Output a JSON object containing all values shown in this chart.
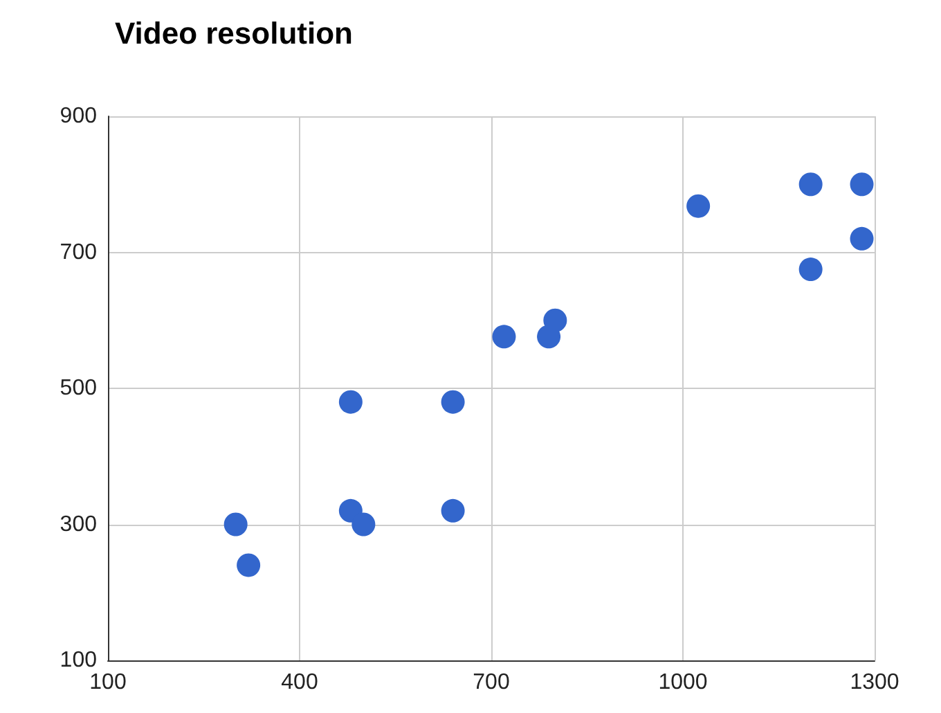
{
  "chart_data": {
    "type": "scatter",
    "title": "Video resolution",
    "x": [
      300,
      320,
      480,
      480,
      500,
      640,
      640,
      720,
      790,
      800,
      1024,
      1200,
      1200,
      1280,
      1280
    ],
    "series": [
      {
        "color": "#3366cc",
        "values": [
          300,
          240,
          480,
          320,
          300,
          480,
          320,
          576,
          576,
          600,
          768,
          800,
          675,
          800,
          720
        ]
      }
    ],
    "xlim": [
      100,
      1300
    ],
    "xticks": [
      100,
      400,
      700,
      1000,
      1300
    ],
    "ylim": [
      100,
      900
    ],
    "yticks": [
      100,
      300,
      500,
      700,
      900
    ],
    "grid": true,
    "marker": "circle"
  }
}
